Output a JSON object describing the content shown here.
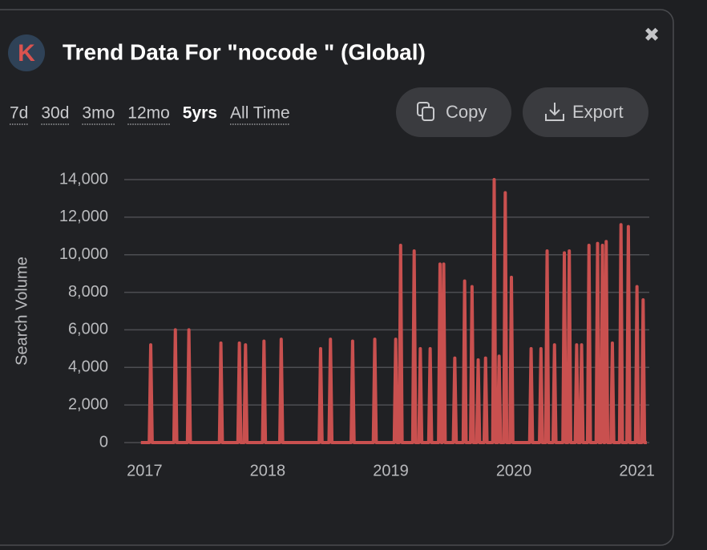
{
  "header": {
    "logo": "K",
    "title": "Trend Data For \"nocode \" (Global)"
  },
  "ranges": [
    "7d",
    "30d",
    "3mo",
    "12mo",
    "5yrs",
    "All Time"
  ],
  "active_range": "5yrs",
  "buttons": [
    "Copy",
    "Export"
  ],
  "chart_data": {
    "type": "line",
    "ylabel": "Search Volume",
    "color": "#c9504f",
    "xlim": [
      2016.9,
      2021.1
    ],
    "xticks": [
      2017,
      2018,
      2019,
      2020,
      2021
    ],
    "ylim": [
      0,
      14000
    ],
    "yticks": [
      0,
      {
        "value": 2000,
        "label": "2,000"
      },
      {
        "value": 4000,
        "label": "4,000"
      },
      {
        "value": 6000,
        "label": "6,000"
      },
      {
        "value": 8000,
        "label": "8,000"
      },
      {
        "value": 10000,
        "label": "10,000"
      },
      {
        "value": 12000,
        "label": "12,000"
      },
      {
        "value": 14000,
        "label": "14,000"
      }
    ],
    "grid": true,
    "x": [
      2016.97,
      2017.038,
      2017.05,
      2017.062,
      2017.238,
      2017.25,
      2017.262,
      2017.348,
      2017.36,
      2017.372,
      2017.608,
      2017.62,
      2017.632,
      2017.758,
      2017.77,
      2017.782,
      2017.808,
      2017.82,
      2017.832,
      2017.958,
      2017.97,
      2017.982,
      2018.098,
      2018.11,
      2018.122,
      2018.418,
      2018.43,
      2018.442,
      2018.498,
      2018.51,
      2018.522,
      2018.678,
      2018.69,
      2018.702,
      2018.858,
      2018.87,
      2018.882,
      2019.028,
      2019.04,
      2019.052,
      2019.068,
      2019.08,
      2019.092,
      2019.178,
      2019.19,
      2019.202,
      2019.228,
      2019.24,
      2019.252,
      2019.308,
      2019.32,
      2019.332,
      2019.388,
      2019.4,
      2019.412,
      2019.418,
      2019.43,
      2019.442,
      2019.508,
      2019.52,
      2019.532,
      2019.588,
      2019.6,
      2019.612,
      2019.648,
      2019.66,
      2019.672,
      2019.698,
      2019.71,
      2019.722,
      2019.758,
      2019.77,
      2019.782,
      2019.828,
      2019.84,
      2019.852,
      2019.868,
      2019.88,
      2019.892,
      2019.918,
      2019.93,
      2019.942,
      2019.968,
      2019.98,
      2019.992,
      2020.128,
      2020.14,
      2020.152,
      2020.208,
      2020.22,
      2020.232,
      2020.258,
      2020.27,
      2020.282,
      2020.318,
      2020.33,
      2020.342,
      2020.398,
      2020.41,
      2020.422,
      2020.438,
      2020.45,
      2020.462,
      2020.498,
      2020.51,
      2020.522,
      2020.538,
      2020.55,
      2020.562,
      2020.598,
      2020.61,
      2020.622,
      2020.668,
      2020.68,
      2020.692,
      2020.708,
      2020.72,
      2020.732,
      2020.738,
      2020.75,
      2020.762,
      2020.788,
      2020.8,
      2020.812,
      2020.858,
      2020.87,
      2020.882,
      2020.918,
      2020.93,
      2020.942,
      2020.988,
      2021.0,
      2021.012,
      2021.038,
      2021.05,
      2021.062,
      2021.08
    ],
    "values": [
      0,
      0,
      5200,
      0,
      0,
      6000,
      0,
      0,
      6000,
      0,
      0,
      5300,
      0,
      0,
      5300,
      0,
      0,
      5200,
      0,
      0,
      5400,
      0,
      0,
      5500,
      0,
      0,
      5000,
      0,
      0,
      5500,
      0,
      0,
      5400,
      0,
      0,
      5500,
      0,
      0,
      5500,
      0,
      0,
      10500,
      0,
      0,
      10200,
      0,
      0,
      5000,
      0,
      0,
      5000,
      0,
      0,
      9500,
      0,
      0,
      9500,
      0,
      0,
      4500,
      0,
      0,
      8600,
      0,
      0,
      8300,
      0,
      0,
      4400,
      0,
      0,
      4500,
      0,
      0,
      14000,
      0,
      0,
      4600,
      0,
      0,
      13300,
      0,
      0,
      8800,
      0,
      0,
      5000,
      0,
      0,
      5000,
      0,
      0,
      10200,
      0,
      0,
      5200,
      0,
      0,
      10100,
      0,
      0,
      10200,
      0,
      0,
      5200,
      0,
      0,
      5200,
      0,
      0,
      10500,
      0,
      0,
      10600,
      0,
      0,
      10500,
      0,
      0,
      10700,
      0,
      0,
      5300,
      0,
      0,
      11600,
      0,
      0,
      11500,
      0,
      0,
      8300,
      0,
      0,
      7600,
      0,
      0
    ]
  }
}
